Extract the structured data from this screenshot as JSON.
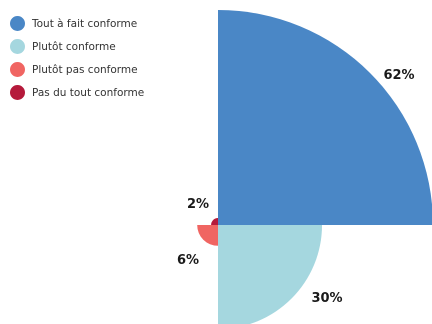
{
  "chart_data": {
    "type": "pie",
    "variant": "polar-area (rose) with radius proportional to value",
    "categories": [
      "Tout à fait conforme",
      "Plutôt conforme",
      "Plutôt pas conforme",
      "Pas du tout conforme"
    ],
    "values": [
      62,
      30,
      6,
      2
    ],
    "value_labels": [
      "62%",
      "30%",
      "6%",
      "2%"
    ],
    "colors": [
      "#4a87c6",
      "#a5d7df",
      "#f06562",
      "#b51a3b"
    ],
    "legend_position": "top-left",
    "title": "",
    "xlabel": "",
    "ylabel": "",
    "grid": false
  }
}
